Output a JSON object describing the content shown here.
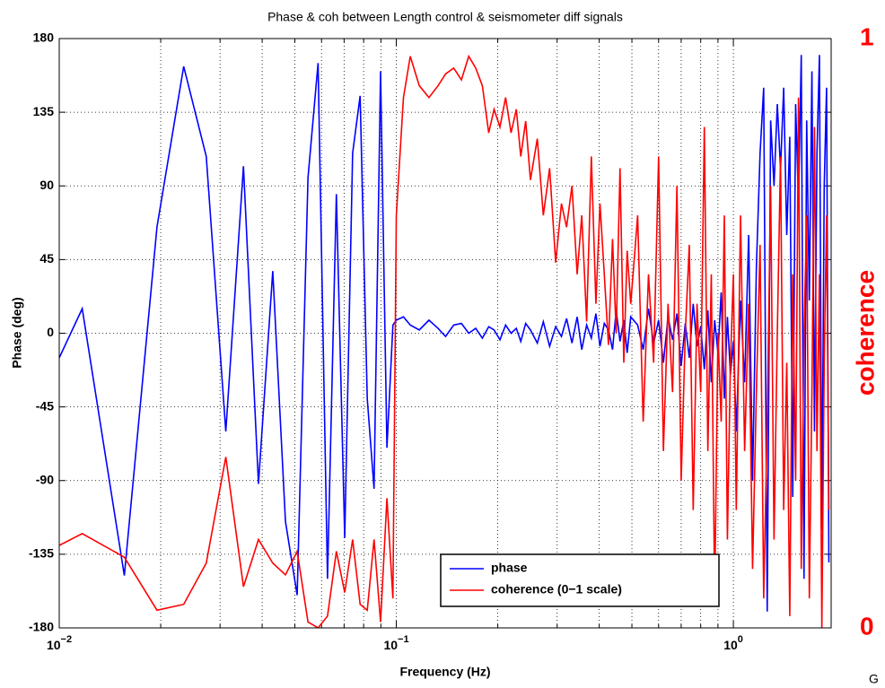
{
  "chart_data": {
    "type": "line",
    "title": "Phase & coh between Length control & seismometer diff signals",
    "xlabel": "Frequency (Hz)",
    "ylabel": "Phase (deg)",
    "y2label": "coherence",
    "corner_text": "G",
    "xscale": "log",
    "grid": true,
    "legend": "lower center",
    "xlim": [
      0.01,
      1.95
    ],
    "xticks": [
      {
        "value": 0.01,
        "label": "10",
        "exponent": "−2"
      },
      {
        "value": 0.1,
        "label": "10",
        "exponent": "−1"
      },
      {
        "value": 1,
        "label": "10",
        "exponent": "0"
      }
    ],
    "xminorticks": [
      0.02,
      0.03,
      0.04,
      0.05,
      0.06,
      0.07,
      0.08,
      0.09,
      0.2,
      0.3,
      0.4,
      0.5,
      0.6,
      0.7,
      0.8,
      0.9
    ],
    "ylim": [
      -180,
      180
    ],
    "yticks": [
      -180,
      -135,
      -90,
      -45,
      0,
      45,
      90,
      135,
      180
    ],
    "y2lim": [
      0,
      1
    ],
    "y2ticks": [
      0,
      1
    ],
    "y2color": "#ff0000",
    "x": [
      0.01,
      0.0117,
      0.0156,
      0.0195,
      0.0234,
      0.0273,
      0.0312,
      0.0352,
      0.039,
      0.043,
      0.0469,
      0.0508,
      0.0547,
      0.0586,
      0.0625,
      0.0664,
      0.0703,
      0.0742,
      0.0781,
      0.082,
      0.0859,
      0.0898,
      0.0938,
      0.0977,
      0.1,
      0.105,
      0.11,
      0.117,
      0.125,
      0.133,
      0.14,
      0.148,
      0.156,
      0.164,
      0.172,
      0.18,
      0.188,
      0.195,
      0.203,
      0.211,
      0.219,
      0.227,
      0.234,
      0.242,
      0.25,
      0.262,
      0.273,
      0.285,
      0.297,
      0.309,
      0.32,
      0.332,
      0.344,
      0.355,
      0.367,
      0.379,
      0.391,
      0.402,
      0.414,
      0.426,
      0.438,
      0.449,
      0.461,
      0.473,
      0.484,
      0.496,
      0.52,
      0.54,
      0.56,
      0.58,
      0.6,
      0.62,
      0.64,
      0.66,
      0.68,
      0.7,
      0.72,
      0.74,
      0.76,
      0.78,
      0.8,
      0.82,
      0.84,
      0.86,
      0.88,
      0.9,
      0.92,
      0.94,
      0.96,
      0.98,
      1.0,
      1.02,
      1.05,
      1.08,
      1.11,
      1.14,
      1.17,
      1.2,
      1.23,
      1.26,
      1.29,
      1.32,
      1.35,
      1.38,
      1.41,
      1.44,
      1.47,
      1.5,
      1.53,
      1.56,
      1.59,
      1.62,
      1.65,
      1.68,
      1.71,
      1.74,
      1.77,
      1.8,
      1.83,
      1.86,
      1.89,
      1.92
    ],
    "series": [
      {
        "name": "phase",
        "color": "#0000ff",
        "values": [
          -15,
          15,
          -148,
          65,
          163,
          108,
          -60,
          102,
          -92,
          38,
          -115,
          -160,
          95,
          165,
          -150,
          85,
          -125,
          110,
          145,
          -40,
          -95,
          160,
          -70,
          5,
          8,
          10,
          5,
          2,
          8,
          3,
          -2,
          5,
          6,
          0,
          3,
          -3,
          4,
          2,
          -4,
          5,
          0,
          3,
          -5,
          6,
          2,
          -6,
          7,
          -8,
          4,
          -2,
          9,
          -6,
          10,
          -10,
          5,
          -3,
          12,
          -8,
          6,
          2,
          -10,
          14,
          -5,
          8,
          -12,
          10,
          5,
          -10,
          15,
          -6,
          8,
          -18,
          10,
          -4,
          12,
          -20,
          6,
          -15,
          18,
          -8,
          4,
          -22,
          14,
          -30,
          8,
          -12,
          25,
          -40,
          10,
          -25,
          -5,
          -60,
          20,
          -30,
          60,
          -90,
          40,
          110,
          150,
          -170,
          130,
          90,
          140,
          100,
          150,
          60,
          120,
          -100,
          140,
          80,
          170,
          -150,
          130,
          20,
          160,
          -60,
          110,
          170,
          -120,
          90,
          150,
          -140
        ]
      },
      {
        "name": "coherence (0−1 scale)",
        "color": "#ff0000",
        "axis": "y2",
        "values": [
          0.14,
          0.16,
          0.12,
          0.03,
          0.04,
          0.11,
          0.29,
          0.07,
          0.15,
          0.11,
          0.09,
          0.13,
          0.01,
          0.0,
          0.02,
          0.13,
          0.06,
          0.15,
          0.04,
          0.03,
          0.15,
          0.01,
          0.22,
          0.05,
          0.7,
          0.9,
          0.97,
          0.92,
          0.9,
          0.92,
          0.94,
          0.95,
          0.93,
          0.97,
          0.95,
          0.92,
          0.84,
          0.88,
          0.85,
          0.9,
          0.84,
          0.88,
          0.8,
          0.86,
          0.76,
          0.83,
          0.7,
          0.78,
          0.62,
          0.72,
          0.68,
          0.75,
          0.6,
          0.7,
          0.52,
          0.8,
          0.55,
          0.72,
          0.6,
          0.48,
          0.66,
          0.5,
          0.78,
          0.45,
          0.64,
          0.55,
          0.7,
          0.35,
          0.6,
          0.45,
          0.8,
          0.3,
          0.55,
          0.4,
          0.75,
          0.25,
          0.5,
          0.65,
          0.2,
          0.55,
          0.4,
          0.85,
          0.3,
          0.6,
          0.05,
          0.5,
          0.35,
          0.7,
          0.15,
          0.45,
          0.6,
          0.2,
          0.7,
          0.3,
          0.55,
          0.1,
          0.4,
          0.65,
          0.05,
          0.35,
          0.75,
          0.15,
          0.5,
          0.8,
          0.2,
          0.45,
          0.02,
          0.6,
          0.25,
          0.9,
          0.1,
          0.5,
          0.7,
          0.05,
          0.4,
          0.85,
          0.3,
          0.6,
          0.0,
          0.45,
          0.7,
          0.2
        ]
      }
    ]
  }
}
